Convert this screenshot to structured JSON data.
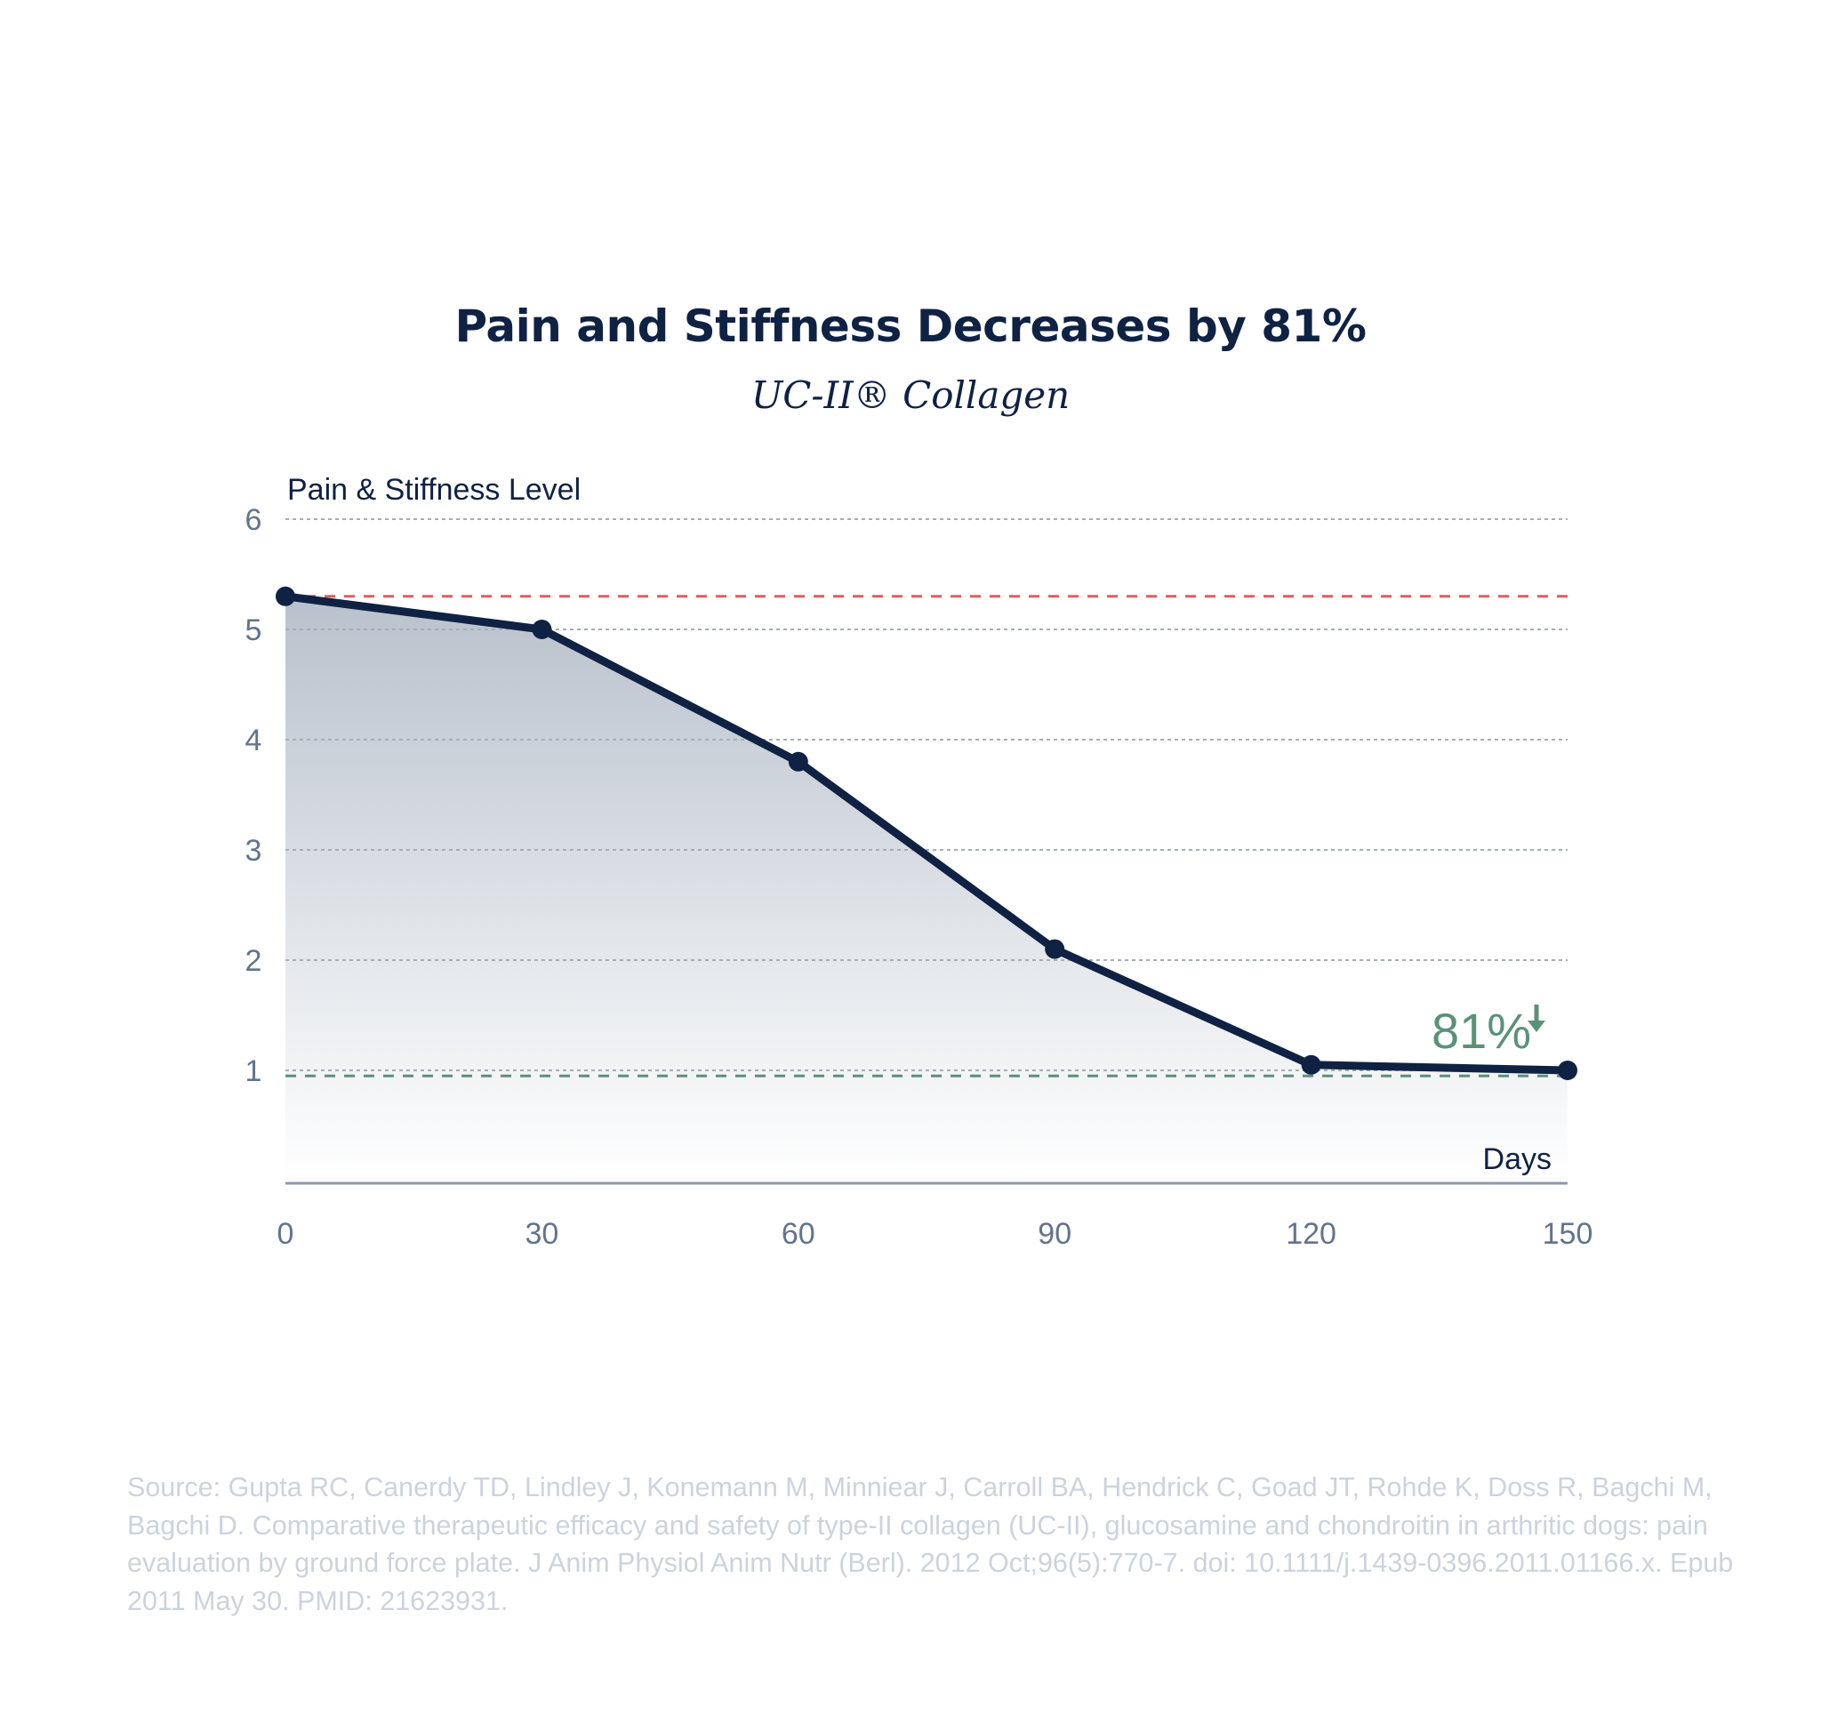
{
  "chart_data": {
    "type": "area",
    "title": "Pain and Stiffness Decreases by 81%",
    "subtitle": "UC-II® Collagen",
    "ylabel": "Pain & Stiffness Level",
    "xlabel": "Days",
    "x": [
      0,
      30,
      60,
      90,
      120,
      150
    ],
    "series": [
      {
        "name": "UC-II Collagen",
        "values": [
          5.3,
          5.0,
          3.8,
          2.1,
          1.05,
          1.0
        ]
      }
    ],
    "xticks": [
      0,
      30,
      60,
      90,
      120,
      150
    ],
    "yticks": [
      1,
      2,
      3,
      4,
      5,
      6
    ],
    "xlim": [
      0,
      150
    ],
    "ylim": [
      0,
      6
    ],
    "grid": true,
    "reference_lines": [
      {
        "name": "start-level",
        "value": 5.3,
        "color": "#d9605f"
      },
      {
        "name": "end-level",
        "value": 0.95,
        "color": "#5a9277"
      }
    ],
    "annotation": {
      "text": "81%",
      "arrow": "down-arrow-icon",
      "color": "#5a9277"
    },
    "colors": {
      "line": "#0f2244",
      "fill_top": "#b9c1cc",
      "fill_bottom": "#ffffff",
      "grid": "#a6adb8",
      "axis": "#8e9aab"
    }
  },
  "source": "Source: Gupta RC, Canerdy TD, Lindley J, Konemann M, Minniear J, Carroll BA, Hendrick C, Goad JT, Rohde K, Doss R, Bagchi M, Bagchi D. Comparative therapeutic efficacy and safety of type-II collagen (UC-II), glucosamine and chondroitin in arthritic dogs: pain evaluation by ground force plate. J Anim Physiol Anim Nutr (Berl). 2012 Oct;96(5):770-7. doi: 10.1111/j.1439-0396.2011.01166.x. Epub 2011 May 30. PMID: 21623931."
}
